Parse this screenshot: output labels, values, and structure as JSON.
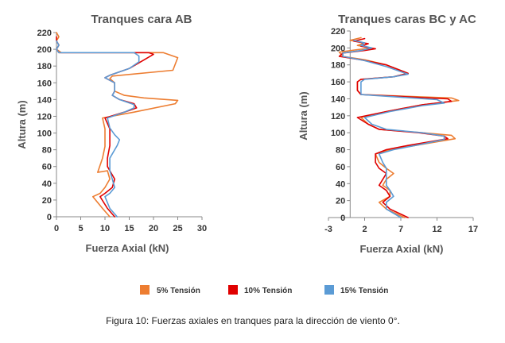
{
  "chart_data": [
    {
      "type": "line",
      "title": "Tranques cara AB",
      "xlabel": "Fuerza Axial (kN)",
      "ylabel": "Altura (m)",
      "xlim": [
        0,
        30
      ],
      "ylim": [
        0,
        220
      ],
      "xticks": [
        0,
        5,
        10,
        15,
        20,
        25,
        30
      ],
      "yticks": [
        0,
        20,
        40,
        60,
        80,
        100,
        120,
        140,
        160,
        180,
        200,
        220
      ],
      "series": [
        {
          "name": "5% Tensión",
          "color": "#ED7D31",
          "points": [
            [
              11,
              0
            ],
            [
              9.5,
              10
            ],
            [
              7.5,
              24
            ],
            [
              9,
              28
            ],
            [
              10,
              35
            ],
            [
              11,
              45
            ],
            [
              10.5,
              55
            ],
            [
              8.5,
              53
            ],
            [
              9.5,
              70
            ],
            [
              10,
              84
            ],
            [
              10,
              95
            ],
            [
              10,
              105
            ],
            [
              9.5,
              118
            ],
            [
              16,
              125
            ],
            [
              24.5,
              135
            ],
            [
              25,
              139
            ],
            [
              18,
              142
            ],
            [
              14,
              145
            ],
            [
              12,
              150
            ],
            [
              12,
              160
            ],
            [
              11,
              165
            ],
            [
              11.5,
              168
            ],
            [
              24,
              175
            ],
            [
              25,
              190
            ],
            [
              22,
              196
            ],
            [
              15,
              196
            ],
            [
              1,
              196
            ],
            [
              0,
              200
            ],
            [
              0.5,
              205
            ],
            [
              0,
              210
            ],
            [
              0.5,
              215
            ],
            [
              0,
              220
            ]
          ]
        },
        {
          "name": "10% Tensión",
          "color": "#E00000",
          "points": [
            [
              12,
              0
            ],
            [
              10.5,
              10
            ],
            [
              9,
              24
            ],
            [
              10,
              28
            ],
            [
              11.5,
              35
            ],
            [
              12,
              45
            ],
            [
              11,
              55
            ],
            [
              10.5,
              60
            ],
            [
              10.5,
              70
            ],
            [
              11,
              85
            ],
            [
              11,
              95
            ],
            [
              11,
              105
            ],
            [
              10,
              118
            ],
            [
              14,
              125
            ],
            [
              16.5,
              130
            ],
            [
              16,
              135
            ],
            [
              13,
              140
            ],
            [
              11.5,
              145
            ],
            [
              12,
              150
            ],
            [
              12,
              160
            ],
            [
              10,
              166
            ],
            [
              11,
              169
            ],
            [
              15,
              177
            ],
            [
              20,
              194
            ],
            [
              19,
              196
            ],
            [
              10,
              196
            ],
            [
              0.5,
              196
            ],
            [
              0,
              200
            ],
            [
              0.5,
              205
            ],
            [
              0,
              210
            ],
            [
              0,
              215
            ]
          ]
        },
        {
          "name": "15% Tensión",
          "color": "#5B9BD5",
          "points": [
            [
              12.5,
              0
            ],
            [
              11,
              10
            ],
            [
              10,
              24
            ],
            [
              11,
              28
            ],
            [
              12,
              35
            ],
            [
              11.5,
              45
            ],
            [
              11,
              55
            ],
            [
              11,
              60
            ],
            [
              11,
              70
            ],
            [
              12.5,
              85
            ],
            [
              13,
              92
            ],
            [
              12,
              98
            ],
            [
              11,
              106
            ],
            [
              10.5,
              118
            ],
            [
              14,
              125
            ],
            [
              16,
              130
            ],
            [
              16,
              134
            ],
            [
              13,
              140
            ],
            [
              11.5,
              145
            ],
            [
              12,
              150
            ],
            [
              12,
              160
            ],
            [
              10,
              166
            ],
            [
              11,
              169
            ],
            [
              15,
              177
            ],
            [
              17,
              185
            ],
            [
              17,
              192
            ],
            [
              16,
              196
            ],
            [
              3,
              196
            ],
            [
              0.5,
              196
            ],
            [
              0,
              200
            ],
            [
              0.5,
              205
            ],
            [
              0,
              210
            ]
          ]
        }
      ]
    },
    {
      "type": "line",
      "title": "Tranques caras BC y AC",
      "xlabel": "Fuerza Axial (kN)",
      "ylabel": "Altura (m)",
      "xlim": [
        -3,
        17
      ],
      "ylim": [
        0,
        220
      ],
      "xticks": [
        -3,
        2,
        7,
        12,
        17
      ],
      "yticks": [
        0,
        20,
        40,
        60,
        80,
        100,
        120,
        140,
        160,
        180,
        200,
        220
      ],
      "series": [
        {
          "name": "5% Tensión",
          "color": "#ED7D31",
          "points": [
            [
              7.5,
              0
            ],
            [
              5,
              10
            ],
            [
              4,
              18
            ],
            [
              5.5,
              25
            ],
            [
              5.5,
              32
            ],
            [
              4.5,
              38
            ],
            [
              5,
              45
            ],
            [
              6,
              52
            ],
            [
              5,
              58
            ],
            [
              4,
              65
            ],
            [
              3.5,
              75
            ],
            [
              5.5,
              80
            ],
            [
              9,
              85
            ],
            [
              14.5,
              93
            ],
            [
              14,
              97
            ],
            [
              10,
              100
            ],
            [
              4,
              104
            ],
            [
              2.5,
              110
            ],
            [
              1.5,
              118
            ],
            [
              5,
              125
            ],
            [
              10,
              133
            ],
            [
              15,
              138
            ],
            [
              14,
              141
            ],
            [
              1.5,
              145
            ],
            [
              1,
              150
            ],
            [
              1,
              160
            ],
            [
              1.5,
              163
            ],
            [
              6,
              166
            ],
            [
              8,
              170
            ],
            [
              5,
              180
            ],
            [
              2,
              186
            ],
            [
              -1,
              190
            ],
            [
              -1.5,
              195
            ],
            [
              1,
              198
            ],
            [
              3,
              200
            ],
            [
              1,
              203
            ],
            [
              2,
              206
            ],
            [
              0,
              209
            ],
            [
              1.5,
              212
            ]
          ]
        },
        {
          "name": "10% Tensión",
          "color": "#E00000",
          "points": [
            [
              8,
              0
            ],
            [
              5.5,
              10
            ],
            [
              4.5,
              18
            ],
            [
              5.5,
              25
            ],
            [
              5,
              32
            ],
            [
              4,
              38
            ],
            [
              4.5,
              45
            ],
            [
              5,
              52
            ],
            [
              4,
              58
            ],
            [
              3.5,
              65
            ],
            [
              3.5,
              75
            ],
            [
              5,
              80
            ],
            [
              8,
              85
            ],
            [
              13.5,
              93
            ],
            [
              13,
              96
            ],
            [
              9.5,
              100
            ],
            [
              4,
              104
            ],
            [
              2.5,
              110
            ],
            [
              1,
              118
            ],
            [
              5,
              125
            ],
            [
              10,
              133
            ],
            [
              14,
              137
            ],
            [
              13.5,
              140
            ],
            [
              1.5,
              145
            ],
            [
              1,
              150
            ],
            [
              1,
              160
            ],
            [
              1.5,
              163
            ],
            [
              6,
              166
            ],
            [
              8,
              170
            ],
            [
              5,
              180
            ],
            [
              1.5,
              186
            ],
            [
              -1.5,
              190
            ],
            [
              -1,
              194
            ],
            [
              2,
              197
            ],
            [
              3.5,
              199
            ],
            [
              1.5,
              202
            ],
            [
              2.5,
              205
            ],
            [
              0.5,
              208
            ],
            [
              2,
              211
            ]
          ]
        },
        {
          "name": "15% Tensión",
          "color": "#5B9BD5",
          "points": [
            [
              7,
              0
            ],
            [
              5,
              10
            ],
            [
              5,
              18
            ],
            [
              6,
              25
            ],
            [
              5.5,
              32
            ],
            [
              5,
              38
            ],
            [
              5,
              45
            ],
            [
              5,
              52
            ],
            [
              5,
              58
            ],
            [
              4.5,
              65
            ],
            [
              4,
              75
            ],
            [
              6,
              80
            ],
            [
              9,
              85
            ],
            [
              13,
              92
            ],
            [
              13,
              96
            ],
            [
              10,
              100
            ],
            [
              5,
              104
            ],
            [
              3,
              110
            ],
            [
              2,
              118
            ],
            [
              5.5,
              125
            ],
            [
              10,
              132
            ],
            [
              13,
              135
            ],
            [
              12,
              139
            ],
            [
              1.5,
              145
            ],
            [
              1.5,
              150
            ],
            [
              1.5,
              160
            ],
            [
              2,
              163
            ],
            [
              6,
              166
            ],
            [
              8,
              169
            ],
            [
              5,
              178
            ],
            [
              2,
              185
            ],
            [
              -1,
              190
            ],
            [
              -1,
              194
            ],
            [
              1.5,
              197
            ],
            [
              3,
              200
            ],
            [
              1.5,
              203
            ],
            [
              2,
              206
            ],
            [
              0.5,
              209
            ]
          ]
        }
      ]
    }
  ],
  "legend": {
    "items": [
      {
        "label": "5% Tensión",
        "color": "#ED7D31"
      },
      {
        "label": "10% Tensión",
        "color": "#E00000"
      },
      {
        "label": "15% Tensión",
        "color": "#5B9BD5"
      }
    ]
  },
  "caption": "Figura 10: Fuerzas axiales en tranques para la dirección de viento 0°."
}
